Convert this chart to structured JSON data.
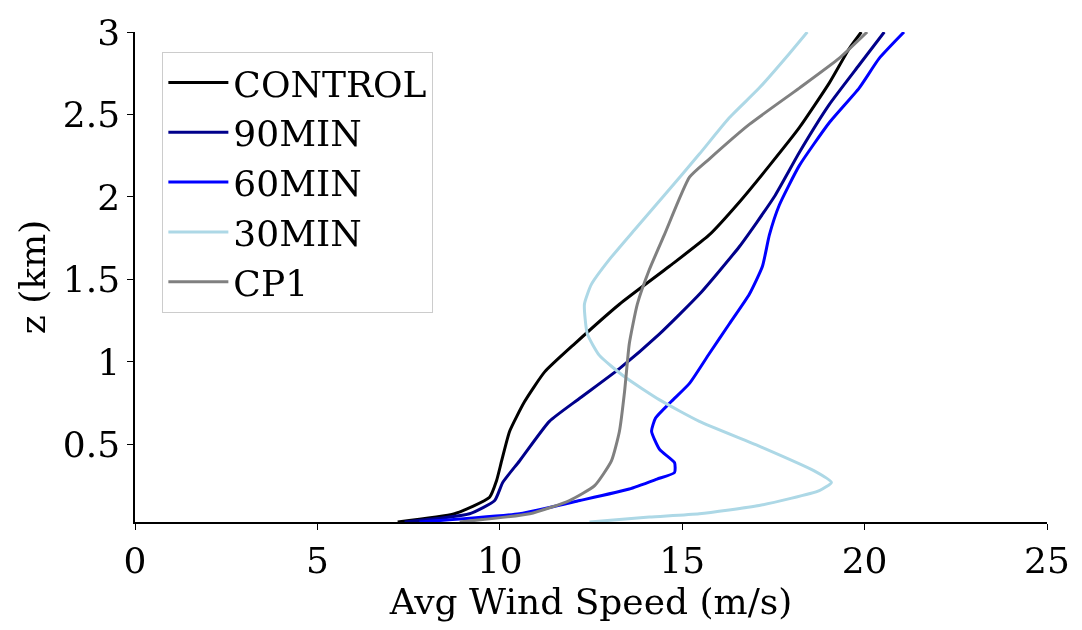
{
  "chart_data": {
    "type": "line",
    "xlabel": "Avg Wind Speed (m/s)",
    "ylabel": "z (km)",
    "xlim": [
      0,
      25
    ],
    "xticks": [
      0,
      5,
      10,
      15,
      20,
      25
    ],
    "ylim": [
      0.03,
      3
    ],
    "yticks": [
      0.5,
      1,
      1.5,
      2,
      2.5,
      3
    ],
    "legend": "top left",
    "marker": "none",
    "line_style": "solid",
    "series": [
      {
        "name": "CONTROL",
        "color": "#000000",
        "x": [
          7.2,
          8.76,
          9.72,
          9.91,
          10.05,
          10.27,
          10.68,
          11.23,
          12.05,
          13.28,
          14.65,
          15.74,
          16.57,
          17.39,
          18.21,
          19.03,
          19.58,
          19.91
        ],
        "values": [
          0.03,
          0.08,
          0.18,
          0.28,
          0.4,
          0.58,
          0.76,
          0.94,
          1.11,
          1.35,
          1.58,
          1.77,
          1.97,
          2.19,
          2.42,
          2.69,
          2.9,
          3.0
        ]
      },
      {
        "name": "90MIN",
        "color": "#00008b",
        "x": [
          7.39,
          9.17,
          9.86,
          10.08,
          10.54,
          11.36,
          12.19,
          13.28,
          14.38,
          15.47,
          16.57,
          17.52,
          18.21,
          19.03,
          19.85,
          20.54
        ],
        "values": [
          0.03,
          0.08,
          0.16,
          0.27,
          0.4,
          0.64,
          0.78,
          0.96,
          1.17,
          1.41,
          1.7,
          2.0,
          2.27,
          2.56,
          2.8,
          3.0
        ]
      },
      {
        "name": "60MIN",
        "color": "#0000ff",
        "x": [
          7.8,
          10.54,
          12.19,
          13.55,
          14.31,
          14.79,
          14.79,
          14.38,
          14.16,
          14.27,
          14.7,
          15.2,
          15.74,
          16.29,
          16.84,
          17.2,
          17.39,
          17.66,
          18.21,
          19.03,
          19.85,
          20.4,
          21.08
        ],
        "values": [
          0.03,
          0.08,
          0.16,
          0.23,
          0.29,
          0.33,
          0.39,
          0.47,
          0.58,
          0.66,
          0.76,
          0.87,
          1.05,
          1.23,
          1.41,
          1.58,
          1.77,
          1.95,
          2.19,
          2.45,
          2.66,
          2.84,
          3.0
        ]
      },
      {
        "name": "30MIN",
        "color": "#add8e6",
        "x": [
          12.46,
          14.1,
          15.47,
          17.11,
          18.76,
          19.09,
          18.62,
          17.11,
          15.47,
          14.38,
          13.42,
          12.73,
          12.4,
          12.32,
          12.51,
          13.0,
          13.69,
          14.51,
          15.47,
          16.29,
          17.11,
          17.94,
          18.43
        ],
        "values": [
          0.03,
          0.06,
          0.08,
          0.13,
          0.22,
          0.27,
          0.34,
          0.49,
          0.64,
          0.77,
          0.91,
          1.04,
          1.17,
          1.35,
          1.47,
          1.62,
          1.8,
          2.01,
          2.26,
          2.48,
          2.66,
          2.87,
          3.0
        ]
      },
      {
        "name": "CP1",
        "color": "#808080",
        "x": [
          8.9,
          10.82,
          11.91,
          12.6,
          13.06,
          13.28,
          13.42,
          13.55,
          13.77,
          14.1,
          14.51,
          15.2,
          15.74,
          16.84,
          18.21,
          19.3,
          20.07
        ],
        "values": [
          0.03,
          0.08,
          0.16,
          0.25,
          0.4,
          0.58,
          0.82,
          1.11,
          1.35,
          1.56,
          1.77,
          2.12,
          2.23,
          2.44,
          2.66,
          2.84,
          3.0
        ]
      }
    ]
  }
}
